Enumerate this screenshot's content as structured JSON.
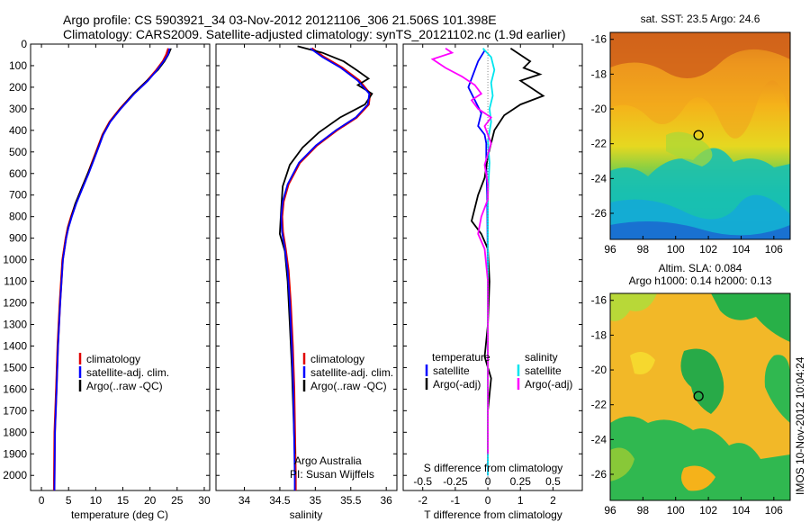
{
  "title": {
    "line1": "Argo profile: CS 5903921_34 03-Nov-2012 20121106_306 21.506S 101.398E",
    "line2": "Climatology: CARS2009. Satellite-adjusted climatology: synTS_20121102.nc (1.9d earlier)"
  },
  "colors": {
    "climatology": "#e00000",
    "satellite": "#0000ff",
    "argo": "#000000",
    "sal_satellite": "#00e5ee",
    "sal_argo": "#ff00ff"
  },
  "chart_data": [
    {
      "type": "line",
      "xlabel": "temperature (deg C)",
      "xlim": [
        -2,
        31
      ],
      "ylim": [
        2070,
        0
      ],
      "xticks": [
        "0",
        "5",
        "10",
        "15",
        "20",
        "25",
        "30"
      ],
      "yticks": [
        "0",
        "100",
        "200",
        "300",
        "400",
        "500",
        "600",
        "700",
        "800",
        "900",
        "1000",
        "1100",
        "1200",
        "1300",
        "1400",
        "1500",
        "1600",
        "1700",
        "1800",
        "1900",
        "2000"
      ],
      "legend": [
        "climatology",
        "satellite-adj. clim.",
        "Argo(..raw -QC)"
      ],
      "series": [
        {
          "name": "climatology",
          "x": [
            23.4,
            23.0,
            22.4,
            21.2,
            19.5,
            17.0,
            14.5,
            12.6,
            11.3,
            10.4,
            9.5,
            8.6,
            7.6,
            6.3,
            5.5,
            4.9,
            4.5,
            4.2,
            3.9,
            3.65,
            3.4,
            3.2,
            3.0,
            2.75,
            2.45,
            2.35
          ],
          "y": [
            20,
            50,
            80,
            120,
            170,
            230,
            300,
            360,
            420,
            480,
            540,
            600,
            660,
            740,
            800,
            850,
            900,
            950,
            1000,
            1100,
            1200,
            1300,
            1400,
            1600,
            1800,
            2070
          ]
        },
        {
          "name": "satellite-adj. clim.",
          "x": [
            23.6,
            23.3,
            22.5,
            21.3,
            19.6,
            17.1,
            14.6,
            12.7,
            11.4,
            10.5,
            9.6,
            8.7,
            7.7,
            6.4,
            5.6,
            5.0,
            4.55,
            4.25,
            3.95,
            3.7,
            3.45,
            3.25,
            3.05,
            2.8,
            2.5,
            2.4
          ],
          "y": [
            20,
            50,
            80,
            120,
            170,
            230,
            300,
            360,
            420,
            480,
            540,
            600,
            660,
            740,
            800,
            850,
            900,
            950,
            1000,
            1100,
            1200,
            1300,
            1400,
            1600,
            1800,
            2070
          ]
        },
        {
          "name": "Argo(..raw -QC)",
          "x": [
            23.9,
            23.4,
            22.7,
            21.5,
            19.4,
            16.9,
            14.5,
            12.6,
            11.3,
            10.4,
            9.5,
            8.5,
            7.5,
            6.2,
            5.5,
            4.9,
            4.5,
            4.2,
            3.9,
            3.65,
            3.4,
            3.2,
            3.0,
            2.75,
            2.5
          ],
          "y": [
            20,
            50,
            80,
            120,
            170,
            230,
            300,
            360,
            420,
            480,
            540,
            600,
            660,
            740,
            800,
            850,
            900,
            950,
            1000,
            1100,
            1200,
            1300,
            1400,
            1600,
            1800
          ]
        }
      ]
    },
    {
      "type": "line",
      "xlabel": "salinity",
      "xlim": [
        33.6,
        36.15
      ],
      "ylim": [
        2070,
        0
      ],
      "xticks": [
        "34",
        "34.5",
        "35",
        "35.5",
        "36"
      ],
      "legend": [
        "climatology",
        "satellite-adj. clim.",
        "Argo(..raw -QC)"
      ],
      "annotation": [
        "Argo Australia",
        "PI: Susan Wijffels"
      ],
      "series": [
        {
          "name": "climatology",
          "x": [
            34.95,
            35.12,
            35.38,
            35.62,
            35.77,
            35.75,
            35.58,
            35.3,
            35.02,
            34.78,
            34.62,
            34.55,
            34.53,
            34.54,
            34.58,
            34.62,
            34.65,
            34.68,
            34.7,
            34.71,
            34.72,
            34.72
          ],
          "y": [
            20,
            60,
            110,
            170,
            230,
            280,
            340,
            400,
            470,
            550,
            650,
            730,
            800,
            870,
            950,
            1050,
            1200,
            1400,
            1600,
            1800,
            2000,
            2070
          ]
        },
        {
          "name": "satellite-adj. clim.",
          "x": [
            34.93,
            35.1,
            35.36,
            35.6,
            35.76,
            35.74,
            35.57,
            35.29,
            35.01,
            34.77,
            34.61,
            34.54,
            34.52,
            34.53,
            34.57,
            34.61,
            34.64,
            34.67,
            34.69,
            34.7,
            34.71,
            34.71
          ],
          "y": [
            20,
            60,
            110,
            170,
            230,
            280,
            340,
            400,
            470,
            550,
            650,
            730,
            800,
            870,
            950,
            1050,
            1200,
            1400,
            1600,
            1800,
            2000,
            2070
          ]
        },
        {
          "name": "Argo(..raw -QC)",
          "x": [
            34.75,
            35.1,
            35.4,
            35.58,
            35.75,
            35.6,
            35.8,
            35.7,
            35.35,
            35.05,
            34.82,
            34.64,
            34.54,
            34.52,
            34.5,
            34.57,
            34.61,
            34.64,
            34.67,
            34.69,
            34.71
          ],
          "y": [
            10,
            40,
            80,
            120,
            160,
            190,
            230,
            280,
            340,
            410,
            480,
            560,
            660,
            760,
            880,
            960,
            1100,
            1300,
            1500,
            1700,
            1900
          ]
        }
      ]
    },
    {
      "type": "line",
      "xlabel": "T difference from climatology",
      "xlabel_top": "S difference from climatology",
      "xlim": [
        -2.6,
        2.9
      ],
      "ylim": [
        2070,
        0
      ],
      "xticks": [
        "-2",
        "-1",
        "0",
        "1",
        "2"
      ],
      "xticks_top": [
        "-0.5",
        "-0.25",
        "0",
        "0.25",
        "0.5"
      ],
      "legend_headers": [
        "temperature",
        "salinity"
      ],
      "legend": [
        "satellite",
        "Argo(-adj)",
        "satellite",
        "Argo(-adj)"
      ],
      "series": [
        {
          "name": "satellite",
          "x": [
            -0.1,
            -0.3,
            -0.45,
            -0.6,
            -0.4,
            -0.2,
            -0.3,
            -0.1,
            -0.05,
            -0.05,
            -0.02,
            -0.01,
            0.0,
            0.0,
            0.0,
            0.0
          ],
          "y": [
            30,
            80,
            140,
            200,
            260,
            320,
            380,
            420,
            460,
            560,
            700,
            900,
            1200,
            1500,
            1800,
            2000
          ]
        },
        {
          "name": "Argo(-adj)",
          "x": [
            0.7,
            1.0,
            1.3,
            1.1,
            1.6,
            1.0,
            1.3,
            1.7,
            1.0,
            0.5,
            0.2,
            0.0,
            -0.1,
            -0.3,
            -0.4,
            -0.5,
            -0.2,
            0.0,
            0.05,
            0.0,
            -0.1,
            0.1,
            0.0,
            0.0
          ],
          "y": [
            20,
            50,
            80,
            110,
            140,
            170,
            200,
            240,
            280,
            330,
            400,
            520,
            620,
            700,
            760,
            820,
            880,
            950,
            1100,
            1300,
            1450,
            1550,
            1700,
            1900
          ]
        },
        {
          "name": "satellite",
          "x": [
            -0.15,
            0.1,
            0.2,
            0.1,
            0.15,
            0.05,
            0.1,
            0.0,
            0.05,
            0.0,
            0.0,
            0.0,
            0.0
          ],
          "y": [
            20,
            60,
            120,
            180,
            240,
            300,
            360,
            450,
            550,
            700,
            900,
            1300,
            2000
          ]
        },
        {
          "name": "Argo(-adj)",
          "x": [
            -1.3,
            -1.1,
            -1.7,
            -1.3,
            -0.8,
            -0.4,
            -0.2,
            -0.5,
            -0.3,
            0.1,
            -0.1,
            0.1,
            -0.1,
            0.0,
            0.0,
            -0.2,
            -0.3,
            -0.1,
            0.0,
            0.0,
            0.0
          ],
          "y": [
            20,
            40,
            70,
            110,
            150,
            190,
            230,
            260,
            300,
            340,
            380,
            460,
            560,
            650,
            720,
            800,
            880,
            950,
            1100,
            1400,
            1900
          ]
        }
      ]
    },
    {
      "type": "heatmap",
      "title": "sat. SST: 23.5 Argo: 24.6",
      "xlim": [
        96,
        107
      ],
      "ylim": [
        -27.5,
        -15.6
      ],
      "xticks": [
        "96",
        "98",
        "100",
        "102",
        "104",
        "106"
      ],
      "yticks": [
        "-16",
        "-18",
        "-20",
        "-22",
        "-24",
        "-26"
      ],
      "marker": {
        "lon": 101.398,
        "lat": -21.506
      }
    },
    {
      "type": "heatmap",
      "title": "Altim. SLA: 0.084",
      "subtitle": "Argo h1000: 0.14 h2000: 0.13",
      "xlim": [
        96,
        107
      ],
      "ylim": [
        -27.5,
        -15.6
      ],
      "xticks": [
        "96",
        "98",
        "100",
        "102",
        "104",
        "106"
      ],
      "yticks": [
        "-16",
        "-18",
        "-20",
        "-22",
        "-24",
        "-26"
      ],
      "marker": {
        "lon": 101.398,
        "lat": -21.506
      }
    }
  ],
  "side_label": "IMOS 10-Nov-2012 10:04:24"
}
